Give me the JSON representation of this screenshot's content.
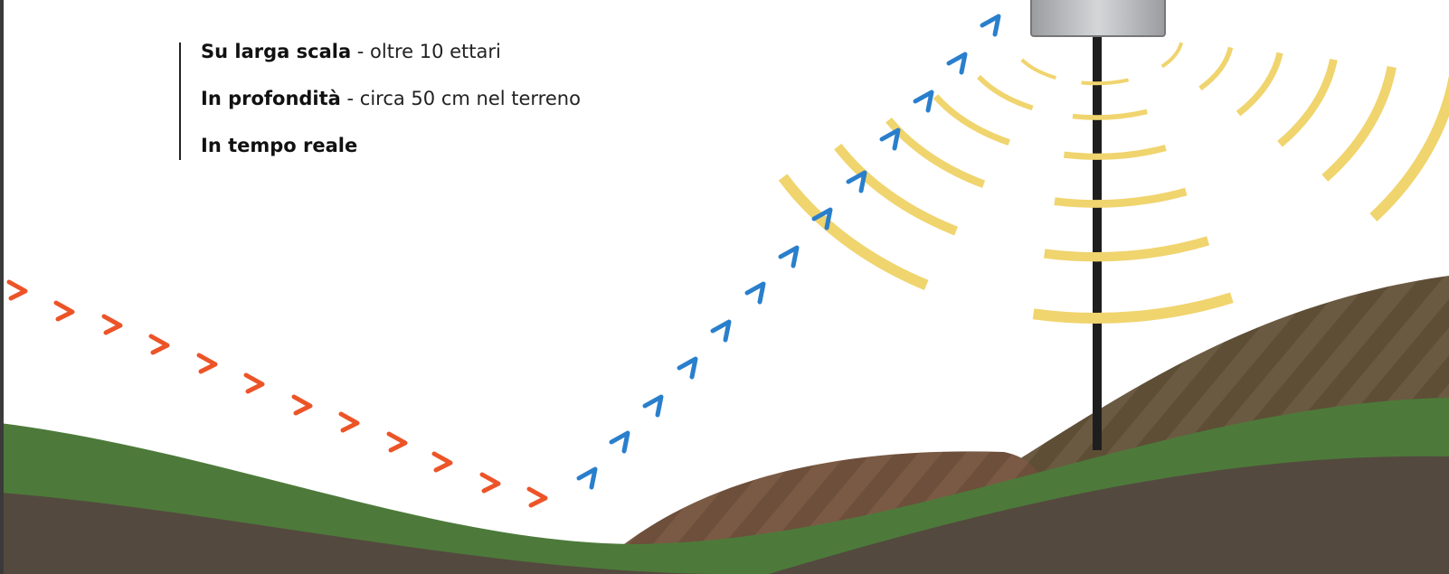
{
  "features": [
    {
      "strong": "Su larga scala",
      "detail": " - oltre 10 ettari"
    },
    {
      "strong": "In profondità",
      "detail": " - circa 50 cm nel terreno"
    },
    {
      "strong": "In tempo reale"
    }
  ]
}
